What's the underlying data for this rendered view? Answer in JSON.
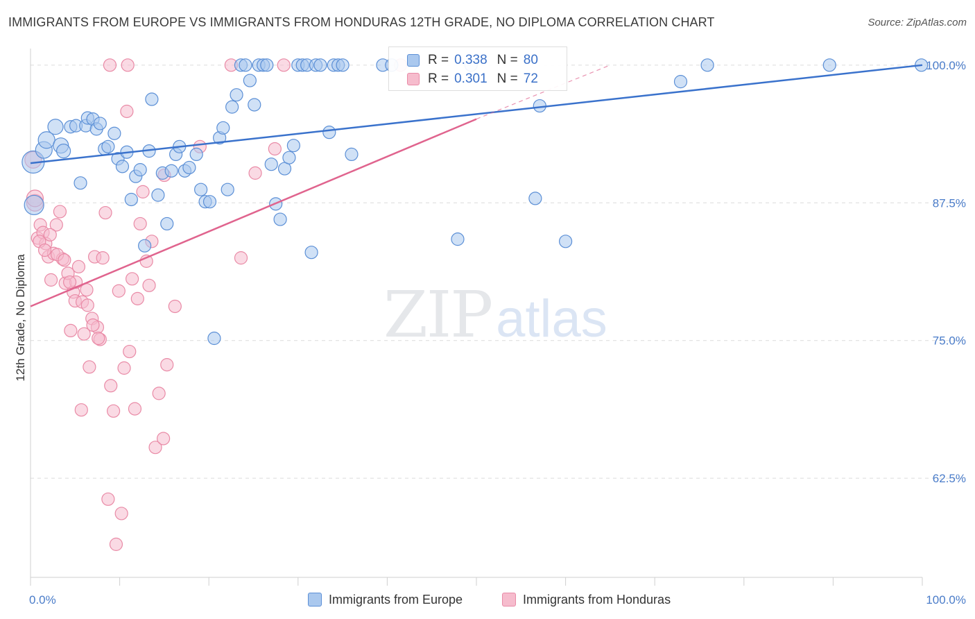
{
  "title": "IMMIGRANTS FROM EUROPE VS IMMIGRANTS FROM HONDURAS 12TH GRADE, NO DIPLOMA CORRELATION CHART",
  "source": "Source: ZipAtlas.com",
  "watermark": {
    "zip": "ZIP",
    "atlas": "atlas"
  },
  "legend": {
    "europe": {
      "r_label": "R =",
      "r_value": "0.338",
      "n_label": "N =",
      "n_value": "80",
      "name": "Immigrants from Europe"
    },
    "honduras": {
      "r_label": "R =",
      "r_value": "0.301",
      "n_label": "N =",
      "n_value": "72",
      "name": "Immigrants from Honduras"
    }
  },
  "colors": {
    "europe_fill": "#aac8ee",
    "europe_stroke": "#5b8fd6",
    "europe_line": "#3a72cc",
    "honduras_fill": "#f6bccd",
    "honduras_stroke": "#e98aa6",
    "honduras_line": "#e0648e",
    "grid": "#dcdcdc",
    "tick_text": "#4a7cc9"
  },
  "chart_data": {
    "type": "scatter",
    "title": "IMMIGRANTS FROM EUROPE VS IMMIGRANTS FROM HONDURAS 12TH GRADE, NO DIPLOMA CORRELATION CHART",
    "xlabel": "",
    "ylabel": "12th Grade, No Diploma",
    "xlim": [
      0,
      100
    ],
    "ylim": [
      53.5,
      101.5
    ],
    "x_tick_labels": [
      "0.0%",
      "100.0%"
    ],
    "y_ticks": [
      62.5,
      75.0,
      87.5,
      100.0
    ],
    "y_tick_labels": [
      "62.5%",
      "75.0%",
      "87.5%",
      "100.0%"
    ],
    "grid": true,
    "legend_position": "top-center",
    "series": [
      {
        "name": "Immigrants from Europe",
        "R": 0.338,
        "N": 80,
        "trend": {
          "x": [
            0,
            100
          ],
          "y": [
            91.1,
            100.0
          ]
        },
        "points": [
          [
            0.3,
            91.2,
            16
          ],
          [
            0.4,
            87.3,
            14
          ],
          [
            1.5,
            92.3,
            12
          ],
          [
            1.8,
            93.2,
            12
          ],
          [
            2.8,
            94.4,
            11
          ],
          [
            3.4,
            92.7,
            11
          ],
          [
            3.7,
            92.2,
            10
          ],
          [
            4.5,
            94.4,
            9
          ],
          [
            5.1,
            94.5,
            9
          ],
          [
            5.6,
            89.3,
            9
          ],
          [
            6.2,
            94.5,
            9
          ],
          [
            6.4,
            95.2,
            9
          ],
          [
            7.0,
            95.1,
            9
          ],
          [
            7.4,
            94.2,
            9
          ],
          [
            7.8,
            94.7,
            9
          ],
          [
            8.3,
            92.4,
            9
          ],
          [
            8.7,
            92.6,
            9
          ],
          [
            9.4,
            93.8,
            9
          ],
          [
            9.8,
            91.5,
            9
          ],
          [
            10.3,
            90.8,
            9
          ],
          [
            10.8,
            92.1,
            9
          ],
          [
            11.3,
            87.8,
            9
          ],
          [
            11.8,
            89.9,
            9
          ],
          [
            12.3,
            90.5,
            9
          ],
          [
            12.8,
            83.6,
            9
          ],
          [
            13.3,
            92.2,
            9
          ],
          [
            13.6,
            96.9,
            9
          ],
          [
            14.3,
            88.2,
            9
          ],
          [
            14.8,
            90.2,
            9
          ],
          [
            15.3,
            85.6,
            9
          ],
          [
            15.8,
            90.4,
            9
          ],
          [
            16.3,
            91.9,
            9
          ],
          [
            16.7,
            92.6,
            9
          ],
          [
            17.3,
            90.4,
            9
          ],
          [
            17.8,
            90.7,
            9
          ],
          [
            18.6,
            91.9,
            9
          ],
          [
            19.1,
            88.7,
            9
          ],
          [
            19.6,
            87.6,
            9
          ],
          [
            20.1,
            87.6,
            9
          ],
          [
            20.6,
            75.2,
            9
          ],
          [
            21.2,
            93.4,
            9
          ],
          [
            21.6,
            94.3,
            9
          ],
          [
            22.1,
            88.7,
            9
          ],
          [
            22.6,
            96.2,
            9
          ],
          [
            23.1,
            97.3,
            9
          ],
          [
            23.6,
            100.0,
            9
          ],
          [
            24.1,
            100.0,
            9
          ],
          [
            24.6,
            98.6,
            9
          ],
          [
            25.1,
            96.4,
            9
          ],
          [
            25.6,
            100.0,
            9
          ],
          [
            26.1,
            100.0,
            9
          ],
          [
            26.5,
            100.0,
            9
          ],
          [
            27.0,
            91.0,
            9
          ],
          [
            27.5,
            87.4,
            9
          ],
          [
            28.0,
            86.0,
            9
          ],
          [
            28.5,
            90.6,
            9
          ],
          [
            29.0,
            91.6,
            9
          ],
          [
            29.5,
            92.7,
            9
          ],
          [
            30.0,
            100.0,
            9
          ],
          [
            30.5,
            100.0,
            9
          ],
          [
            31.0,
            100.0,
            9
          ],
          [
            31.5,
            83.0,
            9
          ],
          [
            32.0,
            100.0,
            9
          ],
          [
            32.5,
            100.0,
            9
          ],
          [
            33.5,
            93.9,
            9
          ],
          [
            34.0,
            100.0,
            9
          ],
          [
            34.5,
            100.0,
            9
          ],
          [
            35.0,
            100.0,
            9
          ],
          [
            36.0,
            91.9,
            9
          ],
          [
            39.5,
            100.0,
            9
          ],
          [
            40.5,
            100.0,
            9
          ],
          [
            47.9,
            84.2,
            9
          ],
          [
            49.4,
            100.0,
            9
          ],
          [
            56.6,
            87.9,
            9
          ],
          [
            57.1,
            96.3,
            9
          ],
          [
            60.0,
            84.0,
            9
          ],
          [
            72.9,
            98.5,
            9
          ],
          [
            75.9,
            100.0,
            9
          ],
          [
            89.6,
            100.0,
            9
          ],
          [
            99.9,
            100.0,
            9
          ]
        ]
      },
      {
        "name": "Immigrants from Honduras",
        "R": 0.301,
        "N": 72,
        "trend": {
          "x": [
            0,
            50
          ],
          "y": [
            78.1,
            95.1
          ]
        },
        "trend_dashed_extension": {
          "x": [
            50,
            65
          ],
          "y": [
            95.1,
            100.0
          ]
        },
        "points": [
          [
            0.3,
            91.4,
            12
          ],
          [
            0.5,
            87.5,
            12
          ],
          [
            0.5,
            87.9,
            12
          ],
          [
            0.8,
            84.3,
            9
          ],
          [
            1.1,
            85.5,
            9
          ],
          [
            1.4,
            84.8,
            9
          ],
          [
            1.7,
            83.8,
            9
          ],
          [
            2.0,
            82.6,
            9
          ],
          [
            2.3,
            80.5,
            9
          ],
          [
            2.6,
            82.9,
            9
          ],
          [
            2.9,
            85.5,
            9
          ],
          [
            3.3,
            86.7,
            9
          ],
          [
            3.6,
            82.4,
            9
          ],
          [
            3.9,
            80.2,
            9
          ],
          [
            4.2,
            81.1,
            9
          ],
          [
            4.5,
            75.9,
            9
          ],
          [
            4.8,
            79.4,
            9
          ],
          [
            5.1,
            80.3,
            9
          ],
          [
            5.4,
            81.7,
            9
          ],
          [
            5.7,
            68.7,
            9
          ],
          [
            6.0,
            75.6,
            9
          ],
          [
            6.3,
            79.6,
            9
          ],
          [
            6.6,
            72.6,
            9
          ],
          [
            6.9,
            77.0,
            9
          ],
          [
            7.2,
            82.6,
            9
          ],
          [
            7.5,
            76.2,
            9
          ],
          [
            7.8,
            75.1,
            9
          ],
          [
            8.1,
            82.5,
            9
          ],
          [
            8.4,
            86.6,
            9
          ],
          [
            8.7,
            60.6,
            9
          ],
          [
            9.0,
            70.9,
            9
          ],
          [
            9.3,
            68.6,
            9
          ],
          [
            9.6,
            56.5,
            9
          ],
          [
            9.9,
            79.5,
            9
          ],
          [
            10.2,
            59.3,
            9
          ],
          [
            10.5,
            72.5,
            9
          ],
          [
            10.8,
            95.8,
            9
          ],
          [
            11.1,
            74.0,
            9
          ],
          [
            11.4,
            80.6,
            9
          ],
          [
            11.7,
            68.8,
            9
          ],
          [
            12.0,
            78.8,
            9
          ],
          [
            12.3,
            85.6,
            9
          ],
          [
            12.6,
            88.5,
            9
          ],
          [
            13.0,
            82.2,
            9
          ],
          [
            13.3,
            80.0,
            9
          ],
          [
            13.6,
            84.0,
            9
          ],
          [
            14.0,
            65.3,
            9
          ],
          [
            14.4,
            70.2,
            9
          ],
          [
            14.9,
            66.1,
            9
          ],
          [
            15.3,
            72.8,
            9
          ],
          [
            16.2,
            78.1,
            9
          ],
          [
            19.0,
            92.6,
            9
          ],
          [
            23.6,
            82.5,
            9
          ],
          [
            25.2,
            90.2,
            9
          ],
          [
            27.4,
            92.4,
            9
          ],
          [
            28.4,
            100.0,
            9
          ],
          [
            8.9,
            100.0,
            9
          ],
          [
            10.9,
            100.0,
            9
          ],
          [
            22.5,
            100.0,
            9
          ],
          [
            41.5,
            100.0,
            9
          ],
          [
            1.0,
            84.0,
            9
          ],
          [
            1.6,
            83.2,
            9
          ],
          [
            2.2,
            84.6,
            9
          ],
          [
            3.0,
            82.8,
            9
          ],
          [
            3.8,
            82.3,
            9
          ],
          [
            4.4,
            80.3,
            9
          ],
          [
            5.0,
            78.6,
            9
          ],
          [
            5.8,
            78.5,
            9
          ],
          [
            6.4,
            78.2,
            9
          ],
          [
            7.0,
            76.4,
            9
          ],
          [
            7.6,
            75.2,
            9
          ],
          [
            15.0,
            90.0,
            9
          ]
        ]
      }
    ]
  }
}
